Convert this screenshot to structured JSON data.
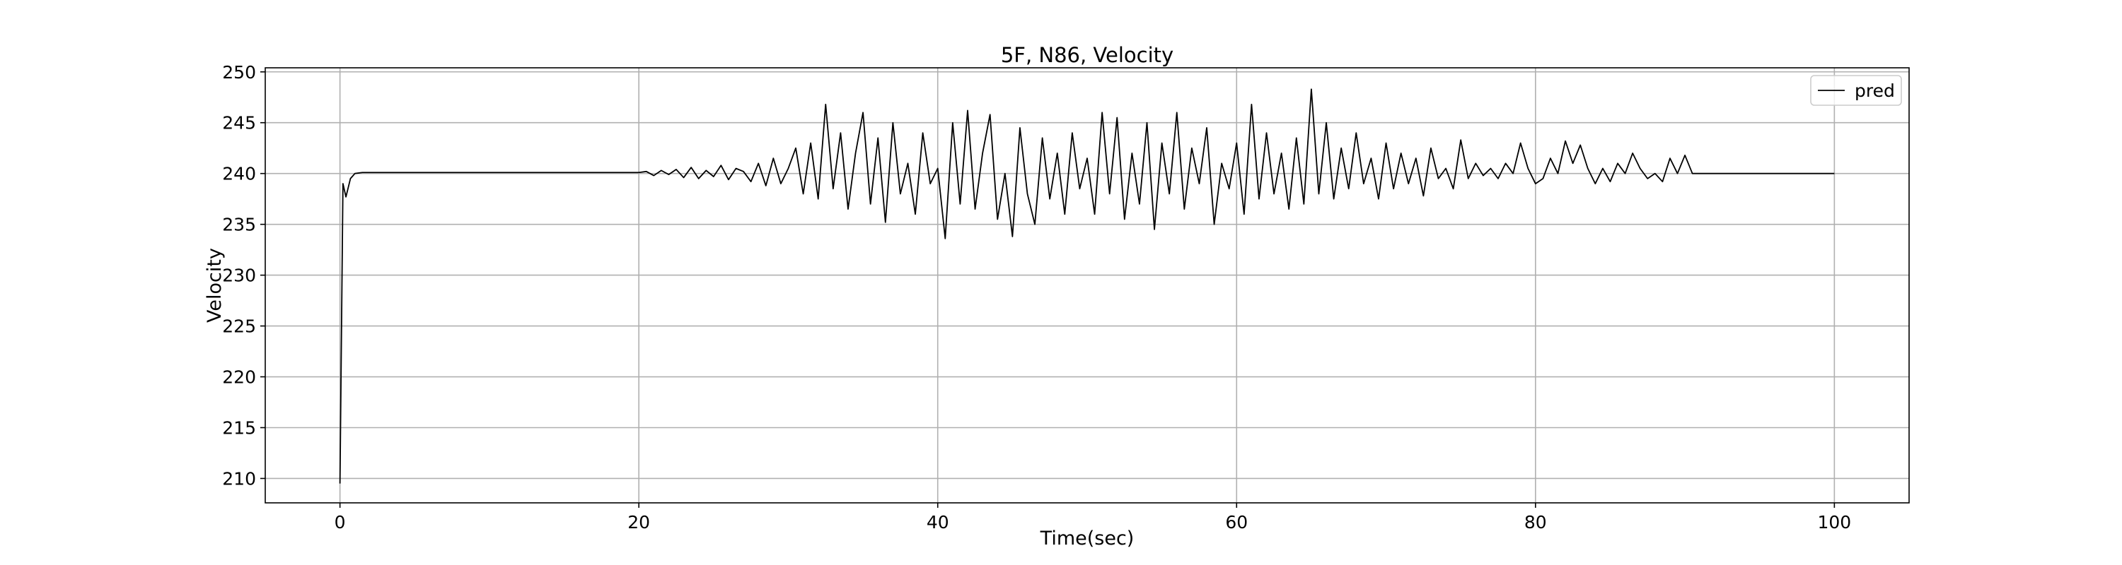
{
  "chart_data": {
    "type": "line",
    "title": "5F, N86, Velocity",
    "xlabel": "Time(sec)",
    "ylabel": "Velocity",
    "xlim": [
      -5,
      105
    ],
    "xticks": [
      0,
      20,
      40,
      60,
      80,
      100
    ],
    "ylim": [
      207.6,
      250.4
    ],
    "yticks": [
      210,
      215,
      220,
      225,
      230,
      235,
      240,
      245,
      250
    ],
    "grid": true,
    "legend": "upper right",
    "x": [
      0,
      0.2,
      0.4,
      0.7,
      1,
      1.5,
      20,
      20.5,
      21,
      21.5,
      22,
      22.5,
      23,
      23.5,
      24,
      24.5,
      25,
      25.5,
      26,
      26.5,
      27,
      27.5,
      28,
      28.5,
      29,
      29.5,
      30,
      30.5,
      31,
      31.5,
      32,
      32.5,
      33,
      33.5,
      34,
      34.5,
      35,
      35.5,
      36,
      36.5,
      37,
      37.5,
      38,
      38.5,
      39,
      39.5,
      40,
      40.5,
      41,
      41.5,
      42,
      42.5,
      43,
      43.5,
      44,
      44.5,
      45,
      45.5,
      46,
      46.5,
      47,
      47.5,
      48,
      48.5,
      49,
      49.5,
      50,
      50.5,
      51,
      51.5,
      52,
      52.5,
      53,
      53.5,
      54,
      54.5,
      55,
      55.5,
      56,
      56.5,
      57,
      57.5,
      58,
      58.5,
      59,
      59.5,
      60,
      60.5,
      61,
      61.5,
      62,
      62.5,
      63,
      63.5,
      64,
      64.5,
      65,
      65.5,
      66,
      66.5,
      67,
      67.5,
      68,
      68.5,
      69,
      69.5,
      70,
      70.5,
      71,
      71.5,
      72,
      72.5,
      73,
      73.5,
      74,
      74.5,
      75,
      75.5,
      76,
      76.5,
      77,
      77.5,
      78,
      78.5,
      79,
      79.5,
      80,
      80.5,
      81,
      81.5,
      82,
      82.5,
      83,
      83.5,
      84,
      84.5,
      85,
      85.5,
      86,
      86.5,
      87,
      87.5,
      88,
      88.5,
      89,
      89.5,
      90,
      90.5,
      100
    ],
    "series": [
      {
        "name": "pred",
        "color": "#000000",
        "values": [
          209.5,
          239,
          237.7,
          239.5,
          240,
          240.1,
          240.1,
          240.2,
          239.8,
          240.3,
          239.9,
          240.4,
          239.6,
          240.6,
          239.5,
          240.3,
          239.7,
          240.8,
          239.4,
          240.5,
          240.2,
          239.2,
          241.0,
          238.8,
          241.5,
          239.0,
          240.5,
          242.5,
          238.0,
          243.0,
          237.5,
          246.8,
          238.5,
          244.0,
          236.5,
          242.0,
          246.0,
          237.0,
          243.5,
          235.2,
          245.0,
          238.0,
          241.0,
          236.0,
          244.0,
          239.0,
          240.5,
          233.6,
          245.0,
          237.0,
          246.2,
          236.5,
          242.0,
          245.8,
          235.5,
          240.0,
          233.8,
          244.5,
          238.0,
          235.0,
          243.5,
          237.5,
          242.0,
          236.0,
          244.0,
          238.5,
          241.5,
          236.0,
          246.0,
          238.0,
          245.5,
          235.5,
          242.0,
          237.0,
          245.0,
          234.5,
          243.0,
          238.0,
          246.0,
          236.5,
          242.5,
          239.0,
          244.5,
          235.0,
          241.0,
          238.5,
          243.0,
          236.0,
          246.8,
          237.5,
          244.0,
          238.0,
          242.0,
          236.5,
          243.5,
          237.0,
          248.3,
          238.0,
          245.0,
          237.5,
          242.5,
          238.5,
          244.0,
          239.0,
          241.5,
          237.5,
          243.0,
          238.5,
          242.0,
          239.0,
          241.5,
          237.8,
          242.5,
          239.5,
          240.5,
          238.5,
          243.3,
          239.5,
          241.0,
          239.8,
          240.5,
          239.5,
          241.0,
          240.0,
          243.0,
          240.5,
          239.0,
          239.5,
          241.5,
          240.0,
          243.2,
          241.0,
          242.8,
          240.5,
          239.0,
          240.5,
          239.2,
          241.0,
          240.0,
          242.0,
          240.5,
          239.5,
          240.0,
          239.2,
          241.5,
          240.0,
          241.8,
          240.0,
          240.0
        ]
      }
    ]
  }
}
